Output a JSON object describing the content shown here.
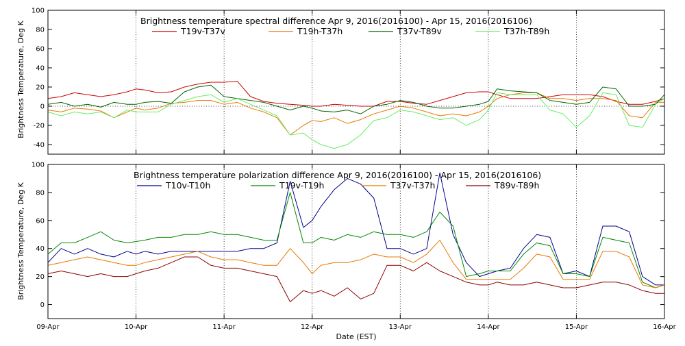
{
  "chart_data": [
    {
      "type": "line",
      "title": "Brightness temperature spectral difference    Apr  9, 2016(2016100) - Apr 15, 2016(2016106)",
      "xlabel": "",
      "ylabel": "Brightness Temperature, Deg K",
      "xlim": [
        0,
        7
      ],
      "ylim": [
        -50,
        100
      ],
      "yticks": [
        -40,
        -20,
        0,
        20,
        40,
        60,
        80,
        100
      ],
      "x_gridlines": [
        1,
        2,
        3,
        4,
        5,
        6
      ],
      "y_gridlines": [
        0
      ],
      "legend": "top",
      "x": [
        0,
        0.15,
        0.3,
        0.45,
        0.6,
        0.75,
        0.9,
        1.0,
        1.1,
        1.25,
        1.4,
        1.55,
        1.7,
        1.85,
        2.0,
        2.15,
        2.3,
        2.45,
        2.6,
        2.75,
        2.9,
        3.0,
        3.1,
        3.25,
        3.4,
        3.55,
        3.7,
        3.85,
        4.0,
        4.15,
        4.3,
        4.45,
        4.6,
        4.75,
        4.9,
        5.0,
        5.1,
        5.25,
        5.4,
        5.55,
        5.7,
        5.85,
        6.0,
        6.15,
        6.3,
        6.45,
        6.6,
        6.75,
        6.9,
        7.0
      ],
      "series": [
        {
          "name": "T19v-T37v",
          "color": "#cc0000",
          "values": [
            8,
            10,
            14,
            12,
            10,
            12,
            15,
            18,
            17,
            14,
            15,
            20,
            23,
            25,
            25,
            26,
            10,
            5,
            3,
            2,
            1,
            0,
            0,
            2,
            1,
            0,
            0,
            5,
            5,
            3,
            2,
            6,
            10,
            14,
            15,
            15,
            12,
            8,
            8,
            8,
            10,
            12,
            12,
            12,
            10,
            5,
            2,
            2,
            5,
            8
          ]
        },
        {
          "name": "T19h-T37h",
          "color": "#e87800",
          "values": [
            -4,
            -6,
            -2,
            -3,
            -5,
            -12,
            -6,
            -2,
            -4,
            -2,
            3,
            4,
            6,
            6,
            2,
            4,
            -2,
            -6,
            -12,
            -30,
            -20,
            -15,
            -16,
            -12,
            -18,
            -14,
            -8,
            -4,
            0,
            -2,
            -6,
            -10,
            -8,
            -10,
            -6,
            0,
            8,
            12,
            14,
            14,
            8,
            8,
            6,
            8,
            8,
            6,
            -10,
            -12,
            4,
            4
          ]
        },
        {
          "name": "T37v-T89v",
          "color": "#006400",
          "values": [
            2,
            4,
            0,
            2,
            -1,
            4,
            2,
            2,
            4,
            5,
            3,
            15,
            20,
            22,
            10,
            8,
            6,
            4,
            0,
            -4,
            0,
            -2,
            -5,
            -6,
            -4,
            -8,
            0,
            2,
            6,
            4,
            0,
            -2,
            -2,
            0,
            2,
            5,
            18,
            16,
            15,
            14,
            6,
            4,
            2,
            4,
            20,
            18,
            0,
            0,
            2,
            12
          ]
        },
        {
          "name": "T37h-T89h",
          "color": "#66ee66",
          "values": [
            -6,
            -10,
            -6,
            -8,
            -6,
            -12,
            -4,
            -6,
            -6,
            -6,
            2,
            6,
            10,
            12,
            4,
            8,
            2,
            -4,
            -10,
            -30,
            -28,
            -35,
            -40,
            -44,
            -40,
            -30,
            -15,
            -12,
            -4,
            -6,
            -10,
            -14,
            -12,
            -20,
            -14,
            -4,
            14,
            12,
            12,
            12,
            -4,
            -8,
            -22,
            -10,
            14,
            12,
            -20,
            -22,
            2,
            8
          ]
        }
      ]
    },
    {
      "type": "line",
      "title": "Brightness temperature polarization difference    Apr  9, 2016(2016100) - Apr 15, 2016(2016106)",
      "xlabel": "Date (EST)",
      "ylabel": "Brightness Temperature, Deg K",
      "xlim": [
        0,
        7
      ],
      "ylim": [
        -10,
        100
      ],
      "yticks": [
        0,
        20,
        40,
        60,
        80,
        100
      ],
      "categories": [
        "09-Apr",
        "10-Apr",
        "11-Apr",
        "12-Apr",
        "13-Apr",
        "14-Apr",
        "15-Apr",
        "16-Apr"
      ],
      "x_gridlines": [
        1,
        2,
        3,
        4,
        5,
        6
      ],
      "y_gridlines": [],
      "legend": "top",
      "x": [
        0,
        0.15,
        0.3,
        0.45,
        0.6,
        0.75,
        0.9,
        1.0,
        1.1,
        1.25,
        1.4,
        1.55,
        1.7,
        1.85,
        2.0,
        2.15,
        2.3,
        2.45,
        2.6,
        2.75,
        2.9,
        3.0,
        3.1,
        3.25,
        3.4,
        3.55,
        3.7,
        3.85,
        4.0,
        4.15,
        4.3,
        4.45,
        4.6,
        4.75,
        4.9,
        5.0,
        5.1,
        5.25,
        5.4,
        5.55,
        5.7,
        5.85,
        6.0,
        6.15,
        6.3,
        6.45,
        6.6,
        6.75,
        6.9,
        7.0
      ],
      "series": [
        {
          "name": "T10v-T10h",
          "color": "#00008b",
          "values": [
            30,
            40,
            36,
            40,
            36,
            34,
            38,
            36,
            38,
            36,
            38,
            38,
            38,
            38,
            38,
            38,
            40,
            40,
            44,
            88,
            55,
            60,
            70,
            82,
            90,
            86,
            76,
            40,
            40,
            36,
            40,
            94,
            50,
            30,
            20,
            22,
            24,
            26,
            40,
            50,
            48,
            22,
            24,
            20,
            56,
            56,
            52,
            20,
            14,
            14
          ]
        },
        {
          "name": "T19v-T19h",
          "color": "#008800",
          "values": [
            36,
            44,
            44,
            48,
            52,
            46,
            44,
            45,
            46,
            48,
            48,
            50,
            50,
            52,
            50,
            50,
            48,
            46,
            46,
            80,
            44,
            44,
            48,
            46,
            50,
            48,
            52,
            50,
            50,
            48,
            52,
            66,
            56,
            20,
            22,
            24,
            24,
            24,
            36,
            44,
            42,
            22,
            22,
            20,
            48,
            46,
            44,
            16,
            12,
            14
          ]
        },
        {
          "name": "T37v-T37h",
          "color": "#e87800",
          "values": [
            28,
            30,
            32,
            34,
            32,
            30,
            28,
            28,
            30,
            32,
            34,
            36,
            38,
            34,
            32,
            32,
            30,
            28,
            28,
            40,
            30,
            22,
            28,
            30,
            30,
            32,
            36,
            34,
            34,
            30,
            36,
            46,
            30,
            18,
            18,
            18,
            18,
            18,
            26,
            36,
            34,
            18,
            18,
            18,
            38,
            38,
            34,
            14,
            12,
            14
          ]
        },
        {
          "name": "T89v-T89h",
          "color": "#8b0000",
          "values": [
            22,
            24,
            22,
            20,
            22,
            20,
            20,
            22,
            24,
            26,
            30,
            34,
            34,
            28,
            26,
            26,
            24,
            22,
            20,
            2,
            10,
            8,
            10,
            6,
            12,
            4,
            8,
            28,
            28,
            24,
            30,
            24,
            20,
            16,
            14,
            14,
            16,
            14,
            14,
            16,
            14,
            12,
            12,
            14,
            16,
            16,
            14,
            10,
            8,
            8
          ]
        }
      ]
    }
  ]
}
